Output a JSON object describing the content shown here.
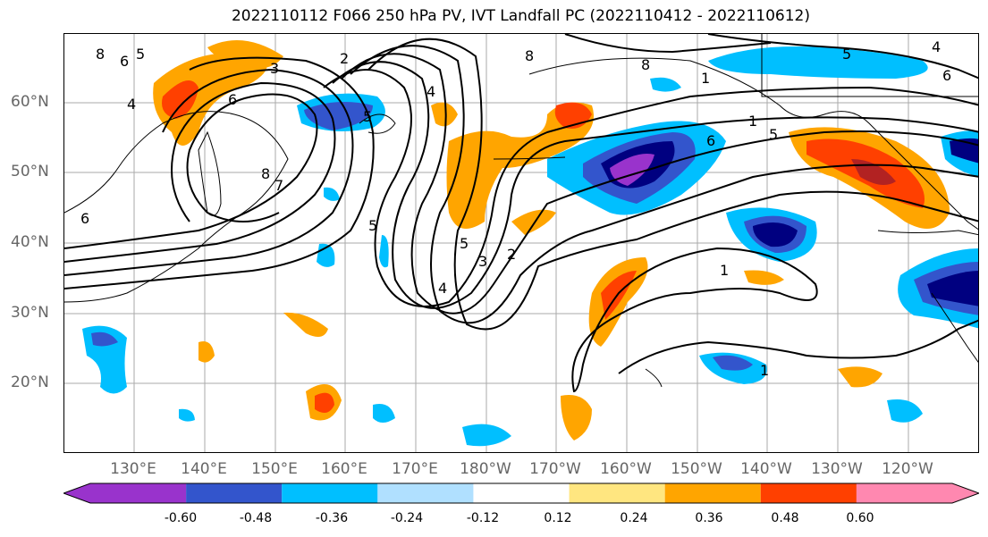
{
  "title": "2022110112 F066 250 hPa PV, IVT Landfall PC (2022110412 - 2022110612)",
  "lat_labels": [
    "60°N",
    "50°N",
    "40°N",
    "30°N",
    "20°N"
  ],
  "lon_labels": [
    "130°E",
    "140°E",
    "150°E",
    "160°E",
    "170°E",
    "180°W",
    "170°W",
    "160°W",
    "150°W",
    "140°W",
    "130°W",
    "120°W"
  ],
  "contour_labels": [
    "8",
    "6",
    "5",
    "4",
    "3",
    "2",
    "8",
    "8",
    "6",
    "7",
    "6",
    "8",
    "5",
    "1",
    "5",
    "6",
    "5",
    "4",
    "3",
    "2",
    "5",
    "4",
    "1",
    "1",
    "5",
    "4",
    "6",
    "1"
  ],
  "colorbar": {
    "colors": [
      "#9933cc",
      "#000080",
      "#3355cc",
      "#00bfff",
      "#b0e0ff",
      "#ffffff",
      "#ffe680",
      "#ffa500",
      "#ff4000",
      "#b22222",
      "#ff88b0"
    ],
    "tick_labels": [
      "-0.60",
      "-0.48",
      "-0.36",
      "-0.24",
      "-0.12",
      "0.12",
      "0.24",
      "0.36",
      "0.48",
      "0.60"
    ]
  }
}
